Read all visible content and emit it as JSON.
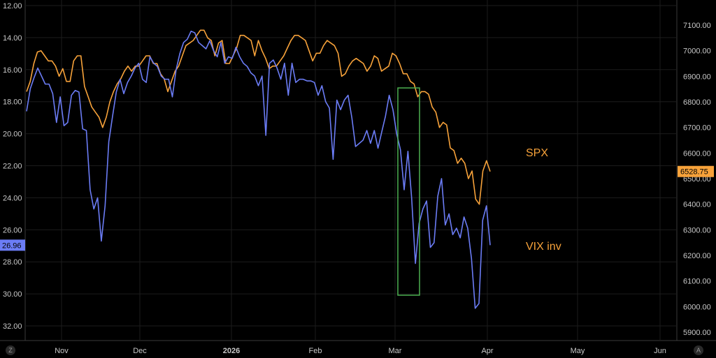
{
  "chart_data": {
    "type": "line",
    "x_ticks": [
      "Nov",
      "Dec",
      "2026",
      "Feb",
      "Mar",
      "Apr",
      "May",
      "Jun"
    ],
    "left_axis": {
      "ticks": [
        "12.00",
        "14.00",
        "16.00",
        "18.00",
        "20.00",
        "22.00",
        "24.00",
        "26.00",
        "28.00",
        "30.00",
        "32.00"
      ],
      "range": [
        12,
        32
      ],
      "inverted": true
    },
    "right_axis": {
      "ticks": [
        "7100.00",
        "7000.00",
        "6900.00",
        "6800.00",
        "6700.00",
        "6600.00",
        "6500.00",
        "6400.00",
        "6300.00",
        "6200.00",
        "6100.00",
        "6000.00",
        "5900.00"
      ],
      "range": [
        5860,
        7200
      ]
    },
    "series": [
      {
        "name": "SPX",
        "axis": "right",
        "color": "#f7a23a",
        "last_value": "6528.75",
        "values": [
          6840,
          6880,
          6950,
          6995,
          7000,
          6980,
          6960,
          6960,
          6940,
          6900,
          6930,
          6880,
          6880,
          6960,
          6980,
          6980,
          6860,
          6820,
          6780,
          6760,
          6740,
          6700,
          6740,
          6800,
          6840,
          6870,
          6890,
          6920,
          6940,
          6920,
          6940,
          6940,
          6960,
          6980,
          6980,
          6950,
          6950,
          6910,
          6890,
          6840,
          6880,
          6920,
          6940,
          6980,
          7020,
          7030,
          7040,
          7060,
          7080,
          7080,
          7050,
          7040,
          6980,
          7030,
          7040,
          6950,
          6950,
          6980,
          7010,
          7060,
          7060,
          7050,
          7040,
          6980,
          7040,
          7000,
          6970,
          6930,
          6940,
          6940,
          6960,
          6980,
          7010,
          7040,
          7060,
          7060,
          7050,
          7040,
          7000,
          6960,
          6990,
          6990,
          7020,
          7040,
          7030,
          7020,
          6990,
          6900,
          6910,
          6940,
          6960,
          6970,
          6960,
          6950,
          6920,
          6940,
          6980,
          6970,
          6920,
          6930,
          6940,
          6990,
          6980,
          6950,
          6910,
          6910,
          6880,
          6870,
          6820,
          6840,
          6840,
          6830,
          6780,
          6760,
          6700,
          6720,
          6710,
          6620,
          6610,
          6560,
          6580,
          6560,
          6500,
          6530,
          6420,
          6400,
          6530,
          6570,
          6528
        ]
      },
      {
        "name": "VIX inv",
        "axis": "left",
        "color": "#6b7cf5",
        "last_value": "26.96",
        "values": [
          18.6,
          17.2,
          16.5,
          15.9,
          16.4,
          16.9,
          16.9,
          17.5,
          19.3,
          17.7,
          19.5,
          19.3,
          17.6,
          17.3,
          17.4,
          19.7,
          19.8,
          23.5,
          24.7,
          24.0,
          26.7,
          24.5,
          20.5,
          18.9,
          17.4,
          16.6,
          17.5,
          16.8,
          16.4,
          15.9,
          15.6,
          16.6,
          16.8,
          15.2,
          15.6,
          15.8,
          16.4,
          16.6,
          16.6,
          17.7,
          16.0,
          15.0,
          14.3,
          14.1,
          13.6,
          13.7,
          14.3,
          14.5,
          14.7,
          14.2,
          14.8,
          15.2,
          14.3,
          15.6,
          15.2,
          15.3,
          14.6,
          15.2,
          15.6,
          15.8,
          16.2,
          16.4,
          17.0,
          16.4,
          20.1,
          15.6,
          15.4,
          15.9,
          16.6,
          15.6,
          17.6,
          15.6,
          16.8,
          16.6,
          16.6,
          16.7,
          16.7,
          16.8,
          17.6,
          17.0,
          18.0,
          18.4,
          21.6,
          17.9,
          18.5,
          17.9,
          17.6,
          19.0,
          20.8,
          20.6,
          20.4,
          19.8,
          20.6,
          19.8,
          20.9,
          19.9,
          18.9,
          17.6,
          18.5,
          20.0,
          21.0,
          23.5,
          21.1,
          24.0,
          28.1,
          25.6,
          24.7,
          24.2,
          27.1,
          26.8,
          23.9,
          22.8,
          25.7,
          25.0,
          26.3,
          25.9,
          26.5,
          25.2,
          25.9,
          27.8,
          30.9,
          30.6,
          25.4,
          24.5,
          26.96
        ]
      }
    ],
    "annotations": [
      {
        "type": "rectangle",
        "color": "#4caf50",
        "x_range": [
          "Mar",
          "Mar"
        ]
      }
    ]
  },
  "ui": {
    "corner_left": "Z",
    "corner_right": "A"
  }
}
